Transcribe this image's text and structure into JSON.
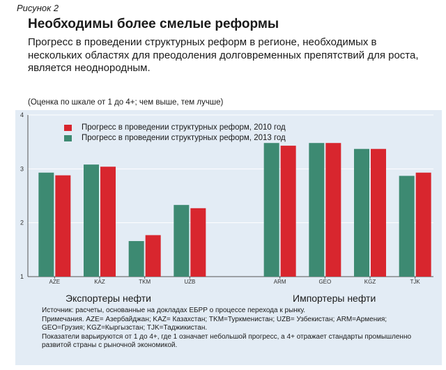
{
  "figure_label": "Рисунок 2",
  "title": "Необходимы более смелые реформы",
  "subtitle": "Прогресс в проведении структурных реформ в регионе, необходимых в нескольких областях для преодоления долговременных препятствий для роста, является неоднородным.",
  "scale_note": "(Оценка по шкале от 1 до 4+; чем выше, тем лучше)",
  "group_labels": {
    "exporters": "Экспортеры нефти",
    "importers": "Импортеры нефти"
  },
  "notes": {
    "source": "Источник: расчеты, основанные на докладах ЕБРР о процессе перехода к рынку.",
    "abbrev": "Примечания. AZE= Азербайджан; KAZ= Казахстан; TKM=Туркменистан; UZB= Узбекистан; ARM=Армения; GEO=Грузия; KGZ=Кыргызстан; TJK=Таджикистан.",
    "scale": "Показатели варьируются от 1 до 4+, где 1 означает небольшой прогресс, а 4+ отражает стандарты промышленно развитой страны с рыночной экономикой."
  },
  "colors": {
    "series_2013": "#3d8a72",
    "series_2010": "#d8262e",
    "panel_bg": "#e3ecf5",
    "grid": "#ffffff"
  },
  "chart_data": {
    "type": "bar",
    "categories": [
      "AZE",
      "KAZ",
      "TKM",
      "UZB",
      "",
      "ARM",
      "GEO",
      "KGZ",
      "TJK"
    ],
    "series": [
      {
        "name": "Прогресс в проведении структурных реформ, 2013 год",
        "values": [
          2.93,
          3.08,
          1.66,
          2.33,
          null,
          3.48,
          3.48,
          3.37,
          2.87
        ]
      },
      {
        "name": "Прогресс в проведении структурных реформ, 2010 год",
        "values": [
          2.88,
          3.04,
          1.77,
          2.27,
          null,
          3.43,
          3.48,
          3.37,
          2.93
        ]
      }
    ],
    "legend_order": [
      1,
      0
    ],
    "legend_position": "top-left",
    "ylim": [
      1,
      4
    ],
    "yticks": [
      1,
      2,
      3,
      4
    ],
    "grid": true
  }
}
